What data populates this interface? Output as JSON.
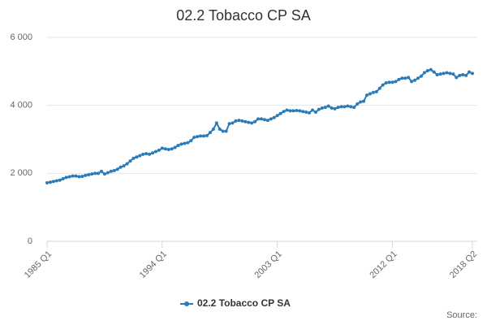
{
  "chart_data": {
    "type": "line",
    "title": "02.2 Tobacco CP SA",
    "source": "Source:",
    "categories": [
      "1985 Q1",
      null,
      null,
      null,
      null,
      null,
      null,
      null,
      null,
      null,
      null,
      null,
      null,
      null,
      null,
      null,
      null,
      null,
      null,
      null,
      null,
      null,
      null,
      null,
      null,
      null,
      null,
      null,
      null,
      null,
      null,
      null,
      null,
      null,
      null,
      null,
      "1994 Q1",
      null,
      null,
      null,
      null,
      null,
      null,
      null,
      null,
      null,
      null,
      null,
      null,
      null,
      null,
      null,
      null,
      null,
      null,
      null,
      null,
      null,
      null,
      null,
      null,
      null,
      null,
      null,
      null,
      null,
      null,
      null,
      null,
      null,
      null,
      null,
      "2003 Q1",
      null,
      null,
      null,
      null,
      null,
      null,
      null,
      null,
      null,
      null,
      null,
      null,
      null,
      null,
      null,
      null,
      null,
      null,
      null,
      null,
      null,
      null,
      null,
      null,
      null,
      null,
      null,
      null,
      null,
      null,
      null,
      null,
      null,
      null,
      null,
      "2012 Q1",
      null,
      null,
      null,
      null,
      null,
      null,
      null,
      null,
      null,
      null,
      null,
      null,
      null,
      null,
      null,
      null,
      null,
      null,
      null,
      null,
      null,
      null,
      null,
      null,
      "2018 Q2"
    ],
    "series": [
      {
        "name": "02.2 Tobacco CP SA",
        "color": "#2b7bb9",
        "values": [
          1720,
          1740,
          1760,
          1780,
          1800,
          1840,
          1880,
          1900,
          1920,
          1920,
          1900,
          1910,
          1940,
          1960,
          1980,
          2000,
          2000,
          2060,
          1980,
          2020,
          2060,
          2080,
          2120,
          2180,
          2220,
          2280,
          2360,
          2440,
          2480,
          2520,
          2560,
          2580,
          2560,
          2600,
          2640,
          2680,
          2740,
          2720,
          2700,
          2720,
          2760,
          2820,
          2860,
          2880,
          2900,
          2960,
          3060,
          3080,
          3100,
          3100,
          3110,
          3200,
          3300,
          3480,
          3300,
          3240,
          3240,
          3460,
          3480,
          3540,
          3560,
          3540,
          3520,
          3500,
          3480,
          3520,
          3600,
          3600,
          3580,
          3560,
          3600,
          3640,
          3700,
          3760,
          3820,
          3860,
          3840,
          3840,
          3850,
          3840,
          3820,
          3800,
          3780,
          3860,
          3800,
          3880,
          3920,
          3940,
          3980,
          3920,
          3900,
          3940,
          3960,
          3960,
          3980,
          3960,
          3940,
          4040,
          4100,
          4120,
          4300,
          4340,
          4380,
          4400,
          4500,
          4600,
          4660,
          4680,
          4680,
          4700,
          4760,
          4800,
          4800,
          4820,
          4700,
          4740,
          4800,
          4860,
          4960,
          5020,
          5050,
          4980,
          4900,
          4920,
          4940,
          4960,
          4940,
          4920,
          4820,
          4880,
          4900,
          4880,
          4980,
          4940
        ]
      }
    ],
    "ylim": [
      0,
      6000
    ],
    "yticks": [
      0,
      {
        "value": 2000,
        "label": "2 000"
      },
      {
        "value": 4000,
        "label": "4 000"
      },
      {
        "value": 6000,
        "label": "6 000"
      }
    ],
    "grid": true,
    "legend": "bottom"
  }
}
